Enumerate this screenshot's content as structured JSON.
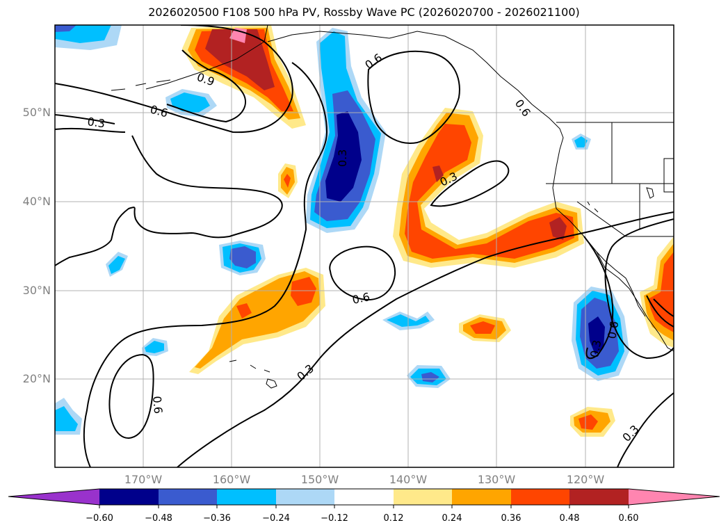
{
  "title": "2026020500 F108 500 hPa PV, Rossby Wave PC (2026020700 - 2026021100)",
  "lat_labels": [
    "50°N",
    "40°N",
    "30°N",
    "20°N"
  ],
  "lon_labels": [
    "170°W",
    "160°W",
    "150°W",
    "140°W",
    "130°W",
    "120°W"
  ],
  "contour_labels": [
    "0.3",
    "0.6",
    "0.9",
    "0.6",
    "0.3",
    "0.6",
    "0.3",
    "0.6",
    "0.3",
    "0.6",
    "0.3",
    "0.6",
    "0.3"
  ],
  "colorbar": {
    "ticks": [
      "−0.60",
      "−0.48",
      "−0.36",
      "−0.24",
      "−0.12",
      "0.12",
      "0.24",
      "0.36",
      "0.48",
      "0.60"
    ],
    "colors": [
      "#9932cc",
      "#00008b",
      "#3a5bcf",
      "#00bfff",
      "#add8f6",
      "#ffffff",
      "#ffe98a",
      "#ffa500",
      "#ff4500",
      "#b22222",
      "#ff85b0"
    ]
  },
  "colors": {
    "neg1": "#add8f6",
    "neg2": "#00bfff",
    "neg3": "#3a5bcf",
    "neg4": "#00008b",
    "pos1": "#ffe98a",
    "pos2": "#ffa500",
    "pos3": "#ff4500",
    "pos4": "#b22222",
    "pos5": "#ff85b0",
    "grid": "#b0b0b0",
    "label": "#808080"
  }
}
